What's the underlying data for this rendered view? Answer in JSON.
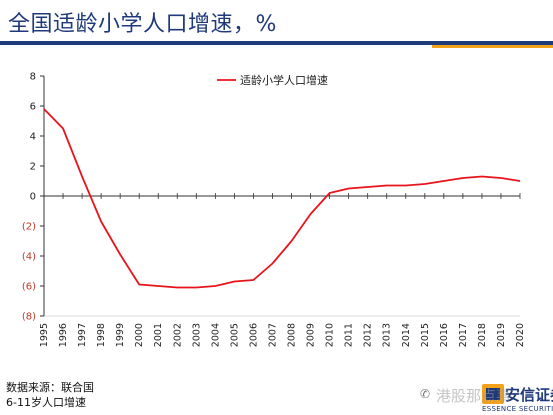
{
  "page": {
    "title": "全国适龄小学人口增速，%",
    "source_line1": "数据来源：联合国",
    "source_line2": "6-11岁人口增速"
  },
  "brand": {
    "name_cn": "安信证券",
    "name_en": "ESSENCE SECURITIES",
    "watermark": "港股那点事",
    "wechat_icon": "wechat-icon"
  },
  "colors": {
    "title": "#1f3a7a",
    "line": "#e8141b",
    "negative_tick": "#c0392b",
    "stripe_orange": "#f4a21a"
  },
  "chart_data": {
    "type": "line",
    "title": "全国适龄小学人口增速，%",
    "xlabel": "",
    "ylabel": "",
    "ylim": [
      -8,
      8
    ],
    "yticks": [
      8,
      6,
      4,
      2,
      0,
      -2,
      -4,
      -6,
      -8
    ],
    "ytick_labels": [
      "8",
      "6",
      "4",
      "2",
      "0",
      "(2)",
      "(4)",
      "(6)",
      "(8)"
    ],
    "grid": false,
    "legend_position": "top-center",
    "x": [
      "1995",
      "1996",
      "1997",
      "1998",
      "1999",
      "2000",
      "2001",
      "2002",
      "2003",
      "2004",
      "2005",
      "2006",
      "2007",
      "2008",
      "2009",
      "2010",
      "2011",
      "2012",
      "2013",
      "2014",
      "2015",
      "2016",
      "2017",
      "2018",
      "2019",
      "2020"
    ],
    "series": [
      {
        "name": "适龄小学人口增速",
        "color": "#e8141b",
        "values": [
          5.8,
          4.5,
          1.3,
          -1.7,
          -3.9,
          -5.9,
          -6.0,
          -6.1,
          -6.1,
          -6.0,
          -5.7,
          -5.6,
          -4.5,
          -3.0,
          -1.2,
          0.2,
          0.5,
          0.6,
          0.7,
          0.7,
          0.8,
          1.0,
          1.2,
          1.3,
          1.2,
          1.0
        ]
      }
    ]
  }
}
